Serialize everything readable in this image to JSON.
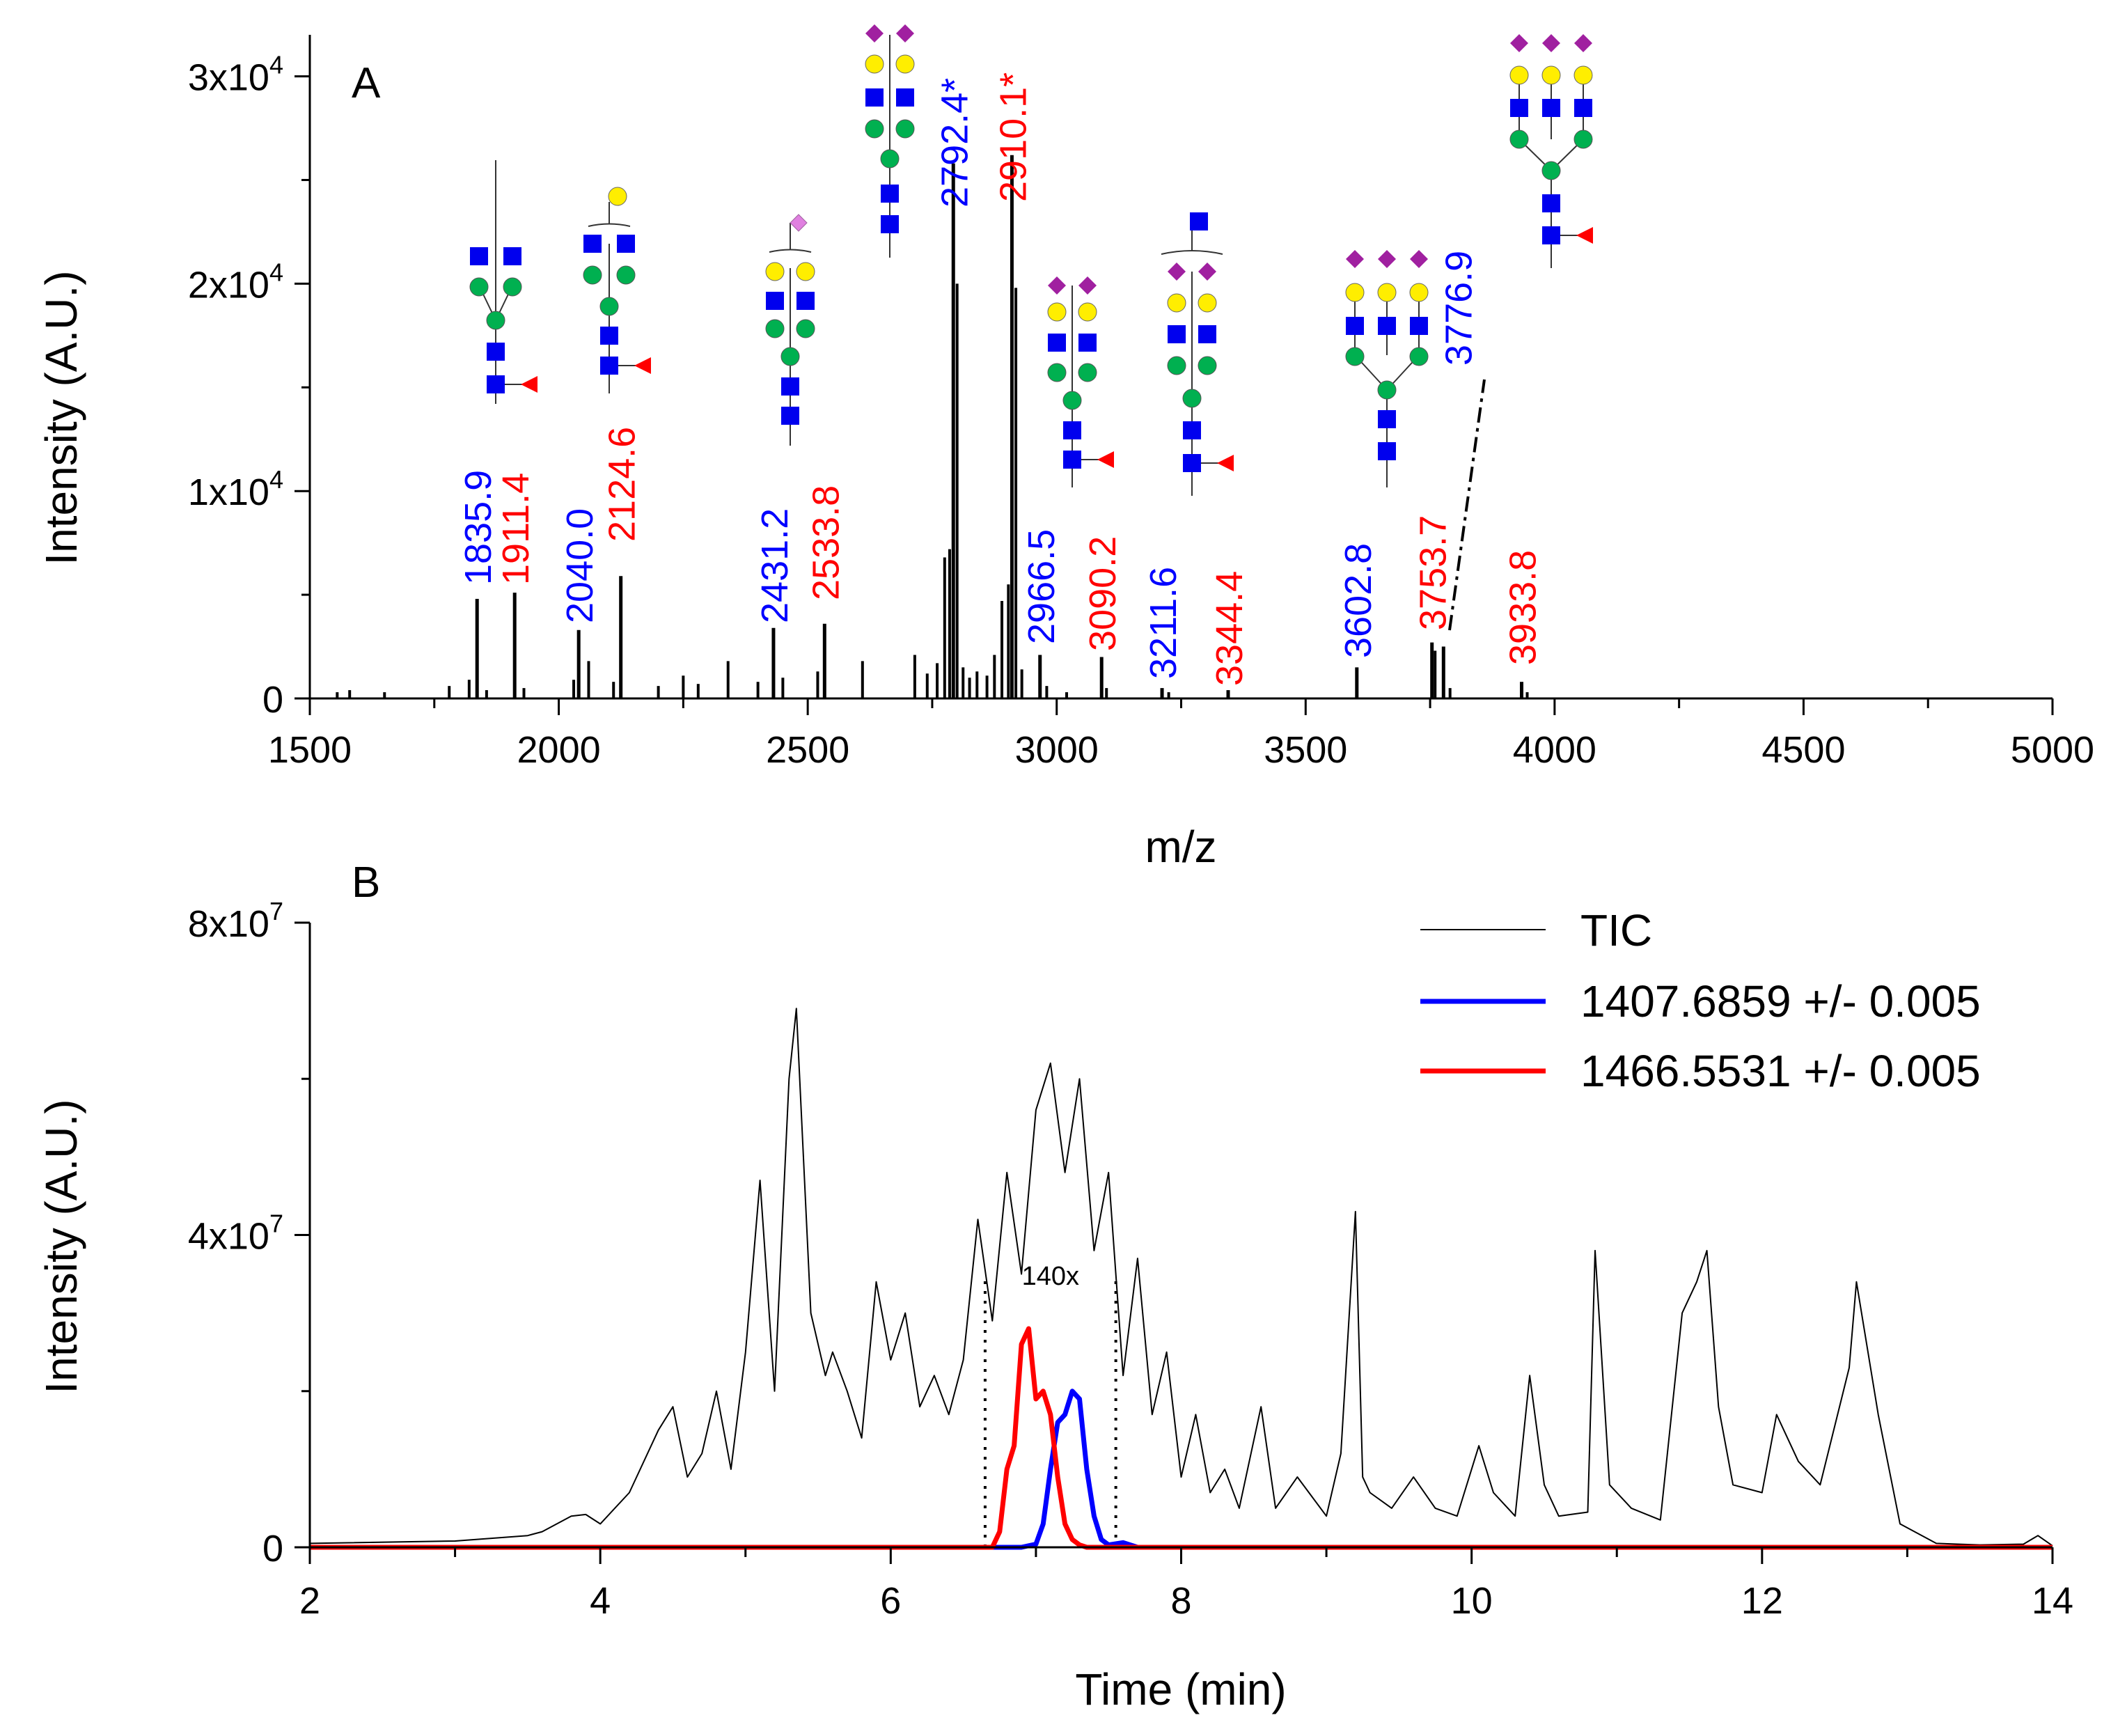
{
  "chart_data": [
    {
      "panel": "A",
      "type": "bar",
      "xlabel": "m/z",
      "ylabel": "Intensity (A.U.)",
      "xlim": [
        1500,
        5000
      ],
      "ylim": [
        0,
        32000
      ],
      "x_ticks": [
        1500,
        2000,
        2500,
        3000,
        3500,
        4000,
        4500,
        5000
      ],
      "y_ticks": [
        {
          "value": 0,
          "mant": "0",
          "exp": ""
        },
        {
          "value": 10000,
          "mant": "1x10",
          "exp": "4"
        },
        {
          "value": 20000,
          "mant": "2x10",
          "exp": "4"
        },
        {
          "value": 30000,
          "mant": "3x10",
          "exp": "4"
        }
      ],
      "labeled_peaks": [
        {
          "mz": 1835.9,
          "intensity": 4800,
          "label": "1835.9",
          "color": "#0000ff"
        },
        {
          "mz": 1911.4,
          "intensity": 5100,
          "label": "1911.4",
          "color": "#ff0000"
        },
        {
          "mz": 2040.0,
          "intensity": 3300,
          "label": "2040.0",
          "color": "#0000ff"
        },
        {
          "mz": 2124.6,
          "intensity": 5900,
          "label": "2124.6",
          "color": "#ff0000"
        },
        {
          "mz": 2431.2,
          "intensity": 3400,
          "label": "2431.2",
          "color": "#0000ff"
        },
        {
          "mz": 2533.8,
          "intensity": 3600,
          "label": "2533.8",
          "color": "#ff0000"
        },
        {
          "mz": 2792.4,
          "intensity": 25800,
          "label": "2792.4*",
          "color": "#0000ff"
        },
        {
          "mz": 2910.1,
          "intensity": 26200,
          "label": "2910.1*",
          "color": "#ff0000"
        },
        {
          "mz": 2966.5,
          "intensity": 2100,
          "label": "2966.5",
          "color": "#0000ff"
        },
        {
          "mz": 3090.2,
          "intensity": 2000,
          "label": "3090.2",
          "color": "#ff0000"
        },
        {
          "mz": 3211.6,
          "intensity": 500,
          "label": "3211.6",
          "color": "#0000ff"
        },
        {
          "mz": 3344.4,
          "intensity": 400,
          "label": "3344.4",
          "color": "#ff0000"
        },
        {
          "mz": 3602.8,
          "intensity": 1500,
          "label": "3602.8",
          "color": "#0000ff"
        },
        {
          "mz": 3753.7,
          "intensity": 2700,
          "label": "3753.7",
          "color": "#ff0000"
        },
        {
          "mz": 3776.9,
          "intensity": 2500,
          "label": "3776.9",
          "color": "#0000ff"
        },
        {
          "mz": 3933.8,
          "intensity": 800,
          "label": "3933.8",
          "color": "#ff0000"
        }
      ],
      "minor_peaks": [
        {
          "mz": 1555,
          "intensity": 300
        },
        {
          "mz": 1580,
          "intensity": 400
        },
        {
          "mz": 1650,
          "intensity": 300
        },
        {
          "mz": 1780,
          "intensity": 600
        },
        {
          "mz": 1820,
          "intensity": 900
        },
        {
          "mz": 1855,
          "intensity": 400
        },
        {
          "mz": 1930,
          "intensity": 500
        },
        {
          "mz": 2030,
          "intensity": 900
        },
        {
          "mz": 2060,
          "intensity": 1800
        },
        {
          "mz": 2110,
          "intensity": 800
        },
        {
          "mz": 2200,
          "intensity": 600
        },
        {
          "mz": 2250,
          "intensity": 1100
        },
        {
          "mz": 2280,
          "intensity": 700
        },
        {
          "mz": 2340,
          "intensity": 1800
        },
        {
          "mz": 2400,
          "intensity": 800
        },
        {
          "mz": 2450,
          "intensity": 1000
        },
        {
          "mz": 2520,
          "intensity": 1300
        },
        {
          "mz": 2610,
          "intensity": 1800
        },
        {
          "mz": 2715,
          "intensity": 2100
        },
        {
          "mz": 2740,
          "intensity": 1200
        },
        {
          "mz": 2760,
          "intensity": 1700
        },
        {
          "mz": 2775,
          "intensity": 6800
        },
        {
          "mz": 2785,
          "intensity": 7200
        },
        {
          "mz": 2800,
          "intensity": 20000
        },
        {
          "mz": 2812,
          "intensity": 1500
        },
        {
          "mz": 2825,
          "intensity": 1000
        },
        {
          "mz": 2840,
          "intensity": 1300
        },
        {
          "mz": 2860,
          "intensity": 1100
        },
        {
          "mz": 2875,
          "intensity": 2100
        },
        {
          "mz": 2890,
          "intensity": 4700
        },
        {
          "mz": 2903,
          "intensity": 5500
        },
        {
          "mz": 2918,
          "intensity": 19800
        },
        {
          "mz": 2930,
          "intensity": 1400
        },
        {
          "mz": 2980,
          "intensity": 600
        },
        {
          "mz": 3020,
          "intensity": 300
        },
        {
          "mz": 3100,
          "intensity": 500
        },
        {
          "mz": 3225,
          "intensity": 300
        },
        {
          "mz": 3760,
          "intensity": 2300
        },
        {
          "mz": 3790,
          "intensity": 500
        },
        {
          "mz": 3945,
          "intensity": 300
        }
      ],
      "panel_label": "A"
    },
    {
      "panel": "B",
      "type": "line",
      "xlabel": "Time (min)",
      "ylabel": "Intensity (A.U.)",
      "xlim": [
        2,
        14
      ],
      "ylim": [
        0,
        80000000
      ],
      "x_ticks": [
        2,
        4,
        6,
        8,
        10,
        12,
        14
      ],
      "y_ticks": [
        {
          "value": 0,
          "mant": "0",
          "exp": ""
        },
        {
          "value": 40000000,
          "mant": "4x10",
          "exp": "7"
        },
        {
          "value": 80000000,
          "mant": "8x10",
          "exp": "7"
        }
      ],
      "annotation": "140x",
      "window": [
        6.65,
        7.55
      ],
      "series": [
        {
          "name": "TIC",
          "color": "#000000",
          "x": [
            2.0,
            3.0,
            3.5,
            3.6,
            3.8,
            3.9,
            4.0,
            4.2,
            4.4,
            4.5,
            4.6,
            4.7,
            4.8,
            4.9,
            5.0,
            5.1,
            5.2,
            5.3,
            5.35,
            5.45,
            5.55,
            5.6,
            5.7,
            5.8,
            5.9,
            6.0,
            6.1,
            6.2,
            6.3,
            6.4,
            6.5,
            6.6,
            6.7,
            6.8,
            6.9,
            7.0,
            7.1,
            7.2,
            7.3,
            7.4,
            7.5,
            7.6,
            7.7,
            7.8,
            7.9,
            8.0,
            8.1,
            8.2,
            8.3,
            8.4,
            8.55,
            8.65,
            8.8,
            9.0,
            9.1,
            9.2,
            9.25,
            9.3,
            9.45,
            9.6,
            9.75,
            9.9,
            10.05,
            10.15,
            10.3,
            10.4,
            10.5,
            10.6,
            10.8,
            10.85,
            10.95,
            11.1,
            11.3,
            11.45,
            11.55,
            11.62,
            11.7,
            11.8,
            12.0,
            12.1,
            12.25,
            12.4,
            12.6,
            12.65,
            12.8,
            12.95,
            13.2,
            13.5,
            13.8,
            13.9,
            14.0
          ],
          "y": [
            500000,
            800000,
            1500000,
            2000000,
            4000000,
            4200000,
            3000000,
            7000000,
            15000000,
            18000000,
            9000000,
            12000000,
            20000000,
            10000000,
            25000000,
            47000000,
            20000000,
            60000000,
            69000000,
            30000000,
            22000000,
            25000000,
            20000000,
            14000000,
            34000000,
            24000000,
            30000000,
            18000000,
            22000000,
            17000000,
            24000000,
            42000000,
            29000000,
            48000000,
            35000000,
            56000000,
            62000000,
            48000000,
            60000000,
            38000000,
            48000000,
            22000000,
            37000000,
            17000000,
            25000000,
            9000000,
            17000000,
            7000000,
            10000000,
            5000000,
            18000000,
            5000000,
            9000000,
            4000000,
            12000000,
            43000000,
            9000000,
            7000000,
            5000000,
            9000000,
            5000000,
            4000000,
            13000000,
            7000000,
            4000000,
            22000000,
            8000000,
            4000000,
            4500000,
            38000000,
            8000000,
            5000000,
            3500000,
            30000000,
            34000000,
            38000000,
            18000000,
            8000000,
            7000000,
            17000000,
            11000000,
            8000000,
            23000000,
            34000000,
            17000000,
            3000000,
            500000,
            300000,
            400000,
            1500000,
            200000
          ]
        },
        {
          "name": "1407.6859 +/- 0.005",
          "color": "#0000ff",
          "x": [
            2.0,
            6.9,
            7.0,
            7.05,
            7.1,
            7.15,
            7.2,
            7.25,
            7.3,
            7.35,
            7.4,
            7.45,
            7.5,
            7.6,
            7.7,
            14.0
          ],
          "y": [
            0,
            0,
            400000,
            3000000,
            10000000,
            16000000,
            17000000,
            20000000,
            19000000,
            10000000,
            4000000,
            1000000,
            300000,
            600000,
            0,
            0
          ]
        },
        {
          "name": "1466.5531 +/- 0.005",
          "color": "#ff0000",
          "x": [
            2.0,
            6.7,
            6.75,
            6.8,
            6.85,
            6.9,
            6.95,
            7.0,
            7.05,
            7.1,
            7.15,
            7.2,
            7.25,
            7.3,
            7.35,
            14.0
          ],
          "y": [
            0,
            0,
            2000000,
            10000000,
            13000000,
            26000000,
            28000000,
            19000000,
            20000000,
            17000000,
            9000000,
            3000000,
            1000000,
            300000,
            0,
            0
          ]
        }
      ],
      "panel_label": "B"
    }
  ]
}
